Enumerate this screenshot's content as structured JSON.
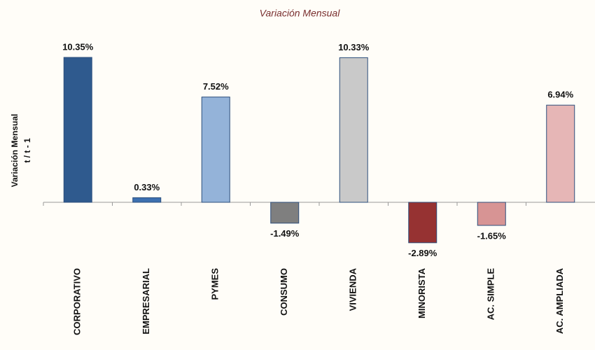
{
  "chart_data": {
    "type": "bar",
    "title": "Variación Mensual",
    "y_label": [
      "Variación Mensual",
      "t / t - 1"
    ],
    "categories": [
      "CORPORATIVO",
      "EMPRESARIAL",
      "PYMES",
      "CONSUMO",
      "VIVIENDA",
      "MINORISTA",
      "AC. SIMPLE",
      "AC. AMPLIADA"
    ],
    "values": [
      10.35,
      0.33,
      7.52,
      -1.49,
      10.33,
      -2.89,
      -1.65,
      6.94
    ],
    "value_labels": [
      "10.35%",
      "0.33%",
      "7.52%",
      "-1.49%",
      "10.33%",
      "-2.89%",
      "-1.65%",
      "6.94%"
    ],
    "colors": [
      "#2f5a8e",
      "#3d70b0",
      "#94b3d9",
      "#7f7f7f",
      "#c9c9c9",
      "#963232",
      "#d79494",
      "#e6b6b6"
    ],
    "ylim": [
      -3.5,
      11
    ]
  }
}
